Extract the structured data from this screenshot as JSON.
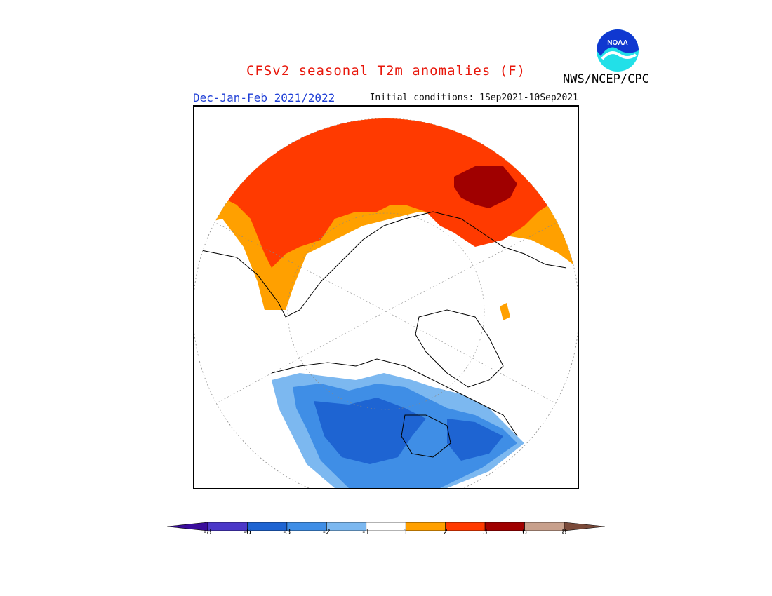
{
  "title": "CFSv2 seasonal T2m anomalies (F)",
  "season_label": "Dec-Jan-Feb 2021/2022",
  "initial_conditions": "Initial conditions: 1Sep2021-10Sep2021",
  "agency": "NWS/NCEP/CPC",
  "logo_text": "NOAA",
  "colorbar": {
    "unit": "F",
    "ticks": [
      "-8",
      "-6",
      "-3",
      "-2",
      "-1",
      "1",
      "2",
      "3",
      "6",
      "8"
    ],
    "colors": [
      "#3a0d9b",
      "#4b38c8",
      "#1e64d2",
      "#3f8ee6",
      "#7cb8f0",
      "#ffffff",
      "#ffa000",
      "#ff3a00",
      "#a00000",
      "#c8a08c",
      "#7a4a3a"
    ]
  },
  "colors": {
    "warm_1_2": "#ffa000",
    "warm_2_3": "#ff3a00",
    "warm_3_6": "#a00000",
    "cool_1_2": "#7cb8f0",
    "cool_2_3": "#3f8ee6",
    "cool_3_6": "#1e64d2"
  }
}
